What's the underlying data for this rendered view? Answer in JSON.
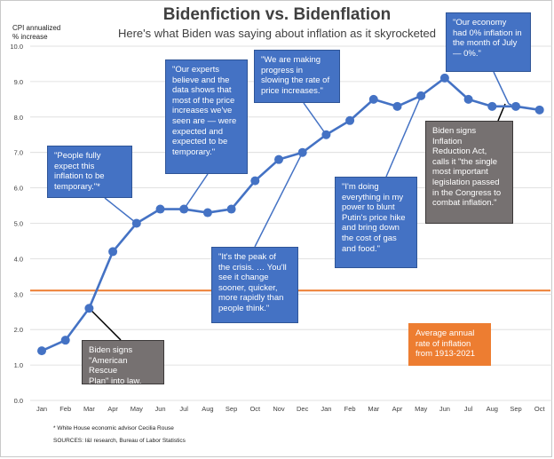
{
  "header": {
    "title": "Bidenfiction vs. Bidenflation",
    "subtitle": "Here's what Biden was saying about inflation as it skyrocketed",
    "y_unit_line1": "CPI annualized",
    "y_unit_line2": "% increase"
  },
  "footnotes": {
    "asterisk": "* White House economic advisor Cecilia Rouse",
    "sources": "SOURCES: I&I research, Bureau of Labor Statistics"
  },
  "colors": {
    "line": "#4472c4",
    "average": "#ed7d31",
    "quote_box": "#4472c4",
    "event_box": "#767171",
    "average_box": "#ed7d31"
  },
  "chart_data": {
    "type": "line",
    "title": "Bidenfiction vs. Bidenflation",
    "xlabel": "",
    "ylabel": "CPI annualized % increase",
    "ylim": [
      0.0,
      10.0
    ],
    "yticks": [
      "0.0",
      "1.0",
      "2.0",
      "3.0",
      "4.0",
      "5.0",
      "6.0",
      "7.0",
      "8.0",
      "9.0",
      "10.0"
    ],
    "categories": [
      "Jan",
      "Feb",
      "Mar",
      "Apr",
      "May",
      "Jun",
      "Jul",
      "Aug",
      "Sep",
      "Oct",
      "Nov",
      "Dec",
      "Jan",
      "Feb",
      "Mar",
      "Apr",
      "May",
      "Jun",
      "Jul",
      "Aug",
      "Sep",
      "Oct"
    ],
    "series": [
      {
        "name": "CPI annualized % increase",
        "values": [
          1.4,
          1.7,
          2.6,
          4.2,
          5.0,
          5.4,
          5.4,
          5.3,
          5.4,
          6.2,
          6.8,
          7.0,
          7.5,
          7.9,
          8.5,
          8.3,
          8.6,
          9.1,
          8.5,
          8.3,
          8.3,
          8.2
        ]
      }
    ],
    "reference_line": {
      "name": "Average annual rate of inflation from 1913-2021",
      "value": 3.1
    },
    "annotations": [
      {
        "id": "rouse",
        "kind": "quote",
        "point_index": 4,
        "lines": [
          "\"People fully",
          "expect this",
          "inflation to be",
          "temporary.\"*"
        ]
      },
      {
        "id": "experts",
        "kind": "quote",
        "point_index": 6,
        "lines": [
          "\"Our experts",
          "believe and the",
          "data shows that",
          "most of the price",
          "increases we've",
          "seen are — were",
          "expected and",
          "expected to be",
          "temporary.\""
        ]
      },
      {
        "id": "progress",
        "kind": "quote",
        "point_index": 12,
        "lines": [
          "\"We are making",
          "progress in",
          "slowing the rate of",
          "price increases.\""
        ]
      },
      {
        "id": "zero",
        "kind": "quote",
        "point_index": null,
        "lines": [
          "\"Our economy",
          "had 0% inflation in",
          "the month of July",
          "— 0%.\""
        ]
      },
      {
        "id": "peak",
        "kind": "quote",
        "point_index": 11,
        "lines": [
          "\"It's the peak of",
          "the crisis. … You'll",
          "see it change",
          "sooner, quicker,",
          "more rapidly than",
          "people think.\""
        ]
      },
      {
        "id": "putin",
        "kind": "quote",
        "point_index": 16,
        "lines": [
          "\"I'm doing",
          "everything in my",
          "power to blunt",
          "Putin's price hike",
          "and bring down",
          "the cost of gas",
          "and food.\""
        ]
      },
      {
        "id": "rescue",
        "kind": "event",
        "point_index": 2,
        "lines": [
          "Biden signs",
          "\"American Rescue",
          "Plan\" into law."
        ]
      },
      {
        "id": "ira",
        "kind": "event",
        "point_index": 19,
        "lines": [
          "Biden signs",
          "Inflation",
          "Reduction Act,",
          "calls it \"the single",
          "most important",
          "legislation passed",
          "in the Congress to",
          "combat inflation.\""
        ]
      },
      {
        "id": "average",
        "kind": "reference",
        "point_index": null,
        "lines": [
          "Average annual",
          "rate of inflation",
          "from 1913-2021"
        ]
      }
    ]
  }
}
